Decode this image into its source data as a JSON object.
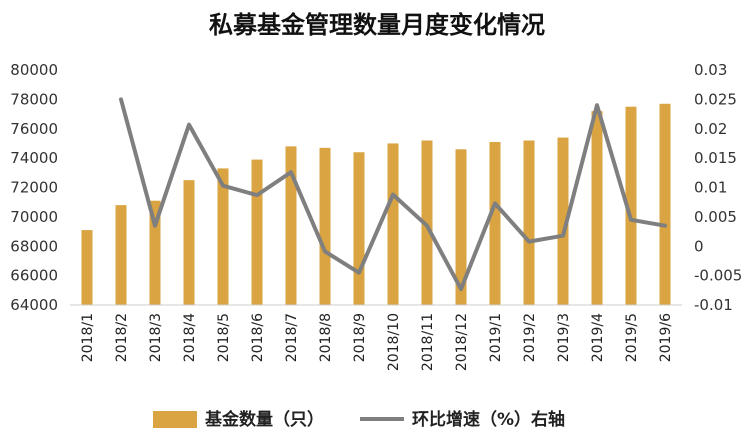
{
  "chart_data": {
    "type": "bar",
    "title": "私募基金管理数量月度变化情况",
    "categories": [
      "2018/1",
      "2018/2",
      "2018/3",
      "2018/4",
      "2018/5",
      "2018/6",
      "2018/7",
      "2018/8",
      "2018/9",
      "2018/10",
      "2018/11",
      "2018/12",
      "2019/1",
      "2019/2",
      "2019/3",
      "2019/4",
      "2019/5",
      "2019/6"
    ],
    "series": [
      {
        "name": "基金数量（只）",
        "type": "bar",
        "axis": "left",
        "color": "#D9A441",
        "values": [
          69100,
          70800,
          71100,
          72500,
          73300,
          73900,
          74800,
          74700,
          74400,
          75000,
          75200,
          74600,
          75100,
          75200,
          75400,
          77200,
          77500,
          77700
        ]
      },
      {
        "name": "环比增速（%）右轴",
        "type": "line",
        "axis": "right",
        "color": "#7F7F7F",
        "values": [
          null,
          0.025,
          0.0035,
          0.0207,
          0.0103,
          0.0087,
          0.0126,
          -0.0009,
          -0.0045,
          0.0088,
          0.0035,
          -0.0073,
          0.0073,
          0.0008,
          0.0018,
          0.024,
          0.0045,
          0.0035
        ]
      }
    ],
    "left_axis": {
      "ylim": [
        64000,
        80000
      ],
      "ticks": [
        "80000",
        "78000",
        "76000",
        "74000",
        "72000",
        "70000",
        "68000",
        "66000",
        "64000"
      ]
    },
    "right_axis": {
      "ylim": [
        -0.01,
        0.03
      ],
      "ticks": [
        "0.03",
        "0.025",
        "0.02",
        "0.015",
        "0.01",
        "0.005",
        "0",
        "-0.005",
        "-0.01"
      ]
    },
    "grid": false,
    "legend_position": "bottom"
  }
}
